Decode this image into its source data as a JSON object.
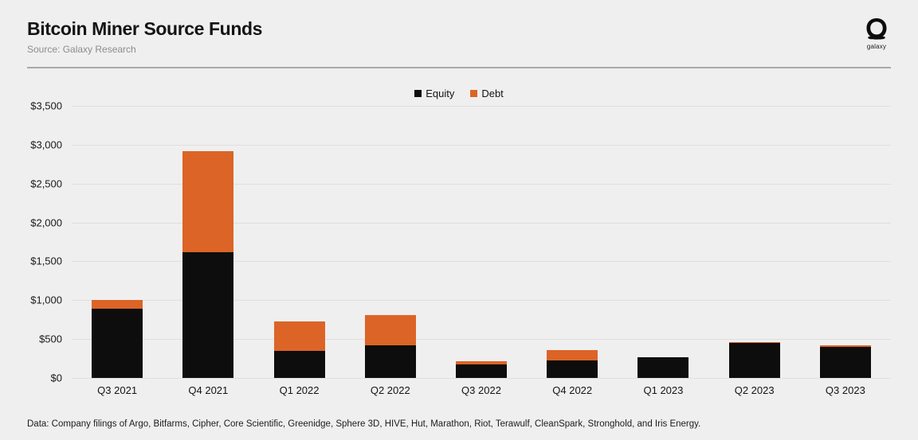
{
  "header": {
    "title": "Bitcoin Miner Source Funds",
    "subtitle": "Source: Galaxy Research",
    "logo_text": "galaxy"
  },
  "chart_data": {
    "type": "bar",
    "stacked": true,
    "title": "Bitcoin Miner Source Funds",
    "xlabel": "",
    "ylabel": "",
    "units": "USD millions",
    "categories": [
      "Q3 2021",
      "Q4 2021",
      "Q1 2022",
      "Q2 2022",
      "Q3 2022",
      "Q4 2022",
      "Q1 2023",
      "Q2 2023",
      "Q3 2023"
    ],
    "series": [
      {
        "name": "Equity",
        "color": "#0d0d0d",
        "values": [
          890,
          1615,
          350,
          420,
          170,
          230,
          265,
          450,
          400
        ]
      },
      {
        "name": "Debt",
        "color": "#dc6427",
        "values": [
          110,
          1300,
          375,
          385,
          50,
          125,
          0,
          15,
          15
        ]
      }
    ],
    "totals": [
      1000,
      2915,
      725,
      805,
      220,
      355,
      265,
      465,
      415
    ],
    "ylim": [
      0,
      3500
    ],
    "y_tick_step": 500,
    "y_ticks": [
      0,
      500,
      1000,
      1500,
      2000,
      2500,
      3000,
      3500
    ],
    "y_tick_labels": [
      "$0",
      "$500",
      "$1,000",
      "$1,500",
      "$2,000",
      "$2,500",
      "$3,000",
      "$3,500"
    ],
    "grid": true,
    "legend_position": "top-center"
  },
  "footer": {
    "note": "Data: Company filings of Argo, Bitfarms, Cipher, Core Scientific, Greenidge, Sphere 3D, HIVE, Hut, Marathon, Riot, Terawulf, CleanSpark, Stronghold, and Iris Energy."
  },
  "colors": {
    "background": "#efefef",
    "equity": "#0d0d0d",
    "debt": "#dc6427",
    "gridline": "#e0dfdd",
    "divider": "#a9a9a9",
    "subtitle_text": "#8c8c8c"
  }
}
